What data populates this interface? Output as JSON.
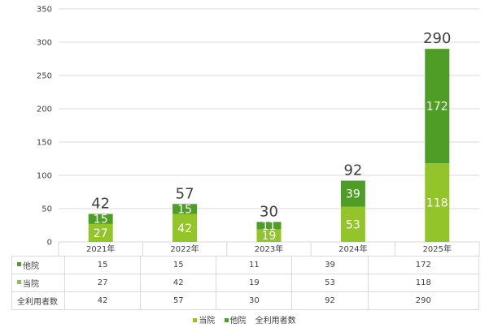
{
  "colors": {
    "own": "#93c42a",
    "other": "#4e9d26",
    "grid": "#d9d9d9",
    "text": "#404040",
    "datalabel": "#ffffff"
  },
  "chart_data": {
    "type": "bar",
    "stacked": true,
    "categories": [
      "2021年",
      "2022年",
      "2023年",
      "2024年",
      "2025年"
    ],
    "series": [
      {
        "name": "当院",
        "values": [
          27,
          42,
          19,
          53,
          118
        ],
        "color": "#93c42a"
      },
      {
        "name": "他院",
        "values": [
          15,
          15,
          11,
          39,
          172
        ],
        "color": "#4e9d26"
      }
    ],
    "totals": {
      "name": "全利用者数",
      "values": [
        42,
        57,
        30,
        92,
        290
      ]
    },
    "ylim": [
      0,
      350
    ],
    "yticks": [
      0,
      50,
      100,
      150,
      200,
      250,
      300,
      350
    ],
    "grid": true,
    "legend": "bottom",
    "data_table": true
  },
  "table": {
    "rows": [
      {
        "label": "他院",
        "marker": "other",
        "values": [
          "15",
          "15",
          "11",
          "39",
          "172"
        ]
      },
      {
        "label": "当院",
        "marker": "own",
        "values": [
          "27",
          "42",
          "19",
          "53",
          "118"
        ]
      },
      {
        "label": "全利用者数",
        "marker": "none",
        "values": [
          "42",
          "57",
          "30",
          "92",
          "290"
        ]
      }
    ]
  },
  "legend": [
    {
      "label": "当院",
      "marker": "own"
    },
    {
      "label": "他院",
      "marker": "other"
    },
    {
      "label": "全利用者数",
      "marker": "none"
    }
  ]
}
